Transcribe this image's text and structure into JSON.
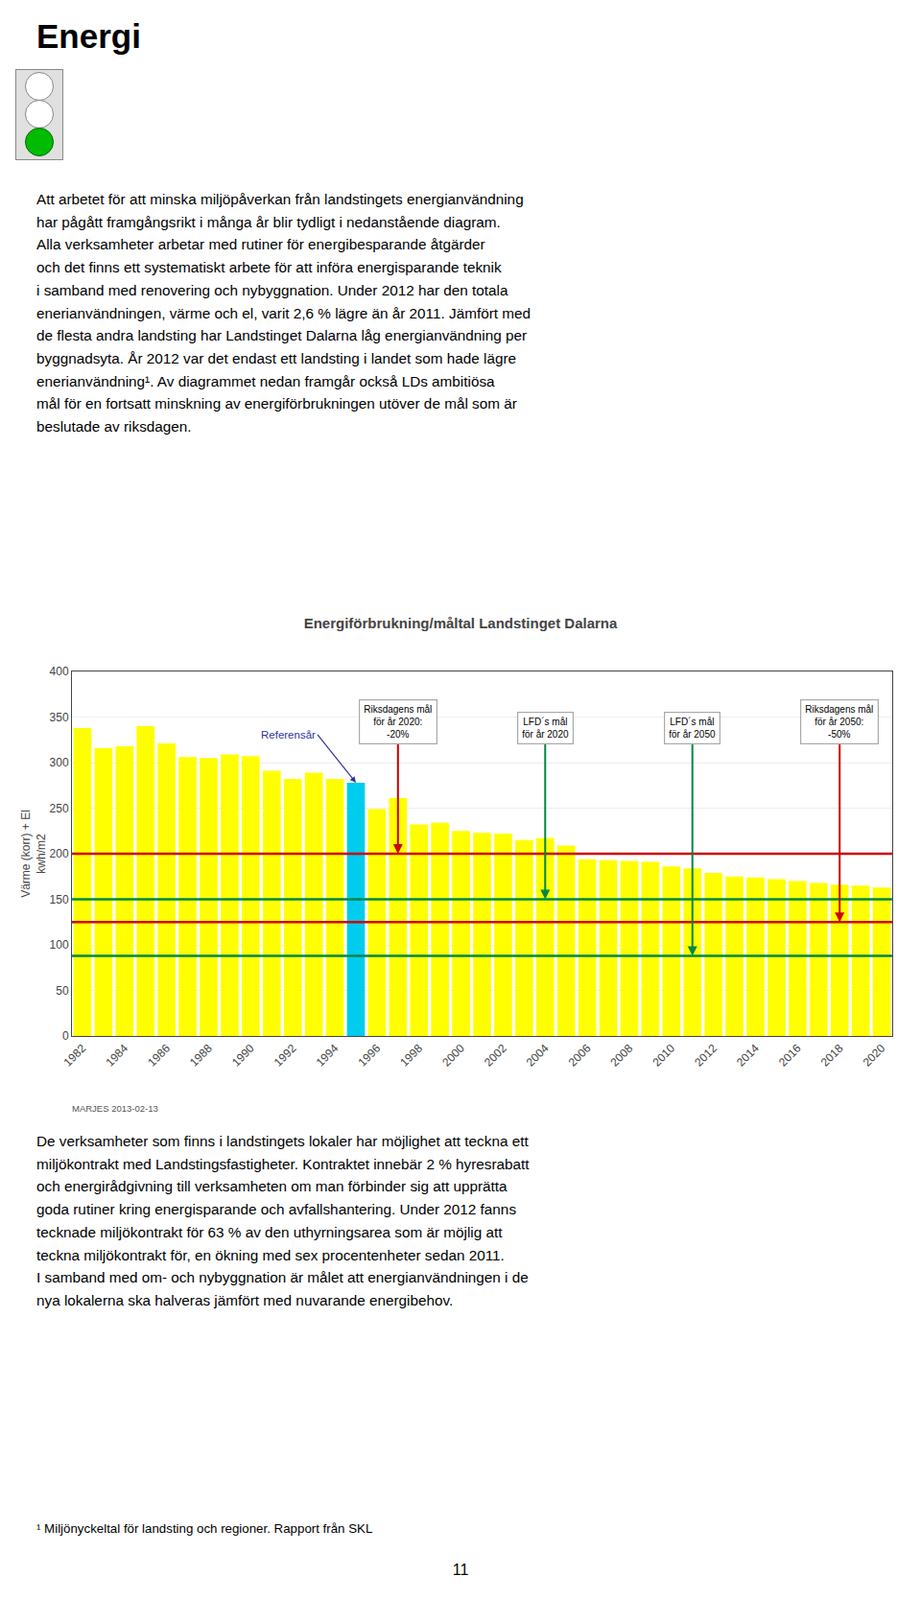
{
  "page_title": "Energi",
  "para1": "Att arbetet för att minska miljöpåverkan från landstingets energianvändning\nhar pågått framgångsrikt i många år blir tydligt i nedanstående diagram.\nAlla verksamheter arbetar med rutiner för energibesparande åtgärder\noch det finns ett systematiskt arbete för att införa energisparande teknik\ni samband med renovering och nybyggnation. Under 2012 har den totala\nenerianvändningen, värme och el, varit 2,6 % lägre än år 2011. Jämfört med\nde flesta andra landsting har Landstinget Dalarna låg energianvändning per\nbyggnadsyta. År 2012 var det endast ett landsting i landet som hade lägre\nenerianvändning¹. Av diagrammet nedan framgår också LDs ambitiösa\nmål för en fortsatt minskning av energiförbrukningen utöver de mål som är\nbeslutade av riksdagen.",
  "para_bottom1": "De verksamheter som finns i landstingets lokaler har möjlighet att teckna ett\nmiljökontrakt med Landstingsfastigheter. Kontraktet innebär 2 % hyresrabatt\noch energirådgivning till verksamheten om man förbinder sig att upprätta\ngoda rutiner kring energisparande och avfallshantering. Under 2012 fanns\ntecknade miljökontrakt för 63 % av den uthyrningsarea som är möjlig att\nteckna miljökontrakt för, en ökning med sex procentenheter sedan 2011.\nI samband med om- och nybyggnation är målet att energianvändningen i de\nnya lokalerna ska halveras jämfört med nuvarande energibehov.",
  "footnote": "¹ Miljönyckeltal för landsting och regioner. Rapport från SKL",
  "page_number": "11",
  "chart_data": {
    "type": "bar",
    "title": "Energiförbrukning/måltal Landstinget Dalarna",
    "ylabel": "Värme (korr) + El\nkwh/m2",
    "source": "MARJES 2013-02-13",
    "x": [
      1982,
      1983,
      1984,
      1985,
      1986,
      1987,
      1988,
      1989,
      1990,
      1991,
      1992,
      1993,
      1994,
      1995,
      1996,
      1997,
      1998,
      1999,
      2000,
      2001,
      2002,
      2003,
      2004,
      2005,
      2006,
      2007,
      2008,
      2009,
      2010,
      2011,
      2012,
      2013,
      2014,
      2015,
      2016,
      2017,
      2018,
      2019,
      2020
    ],
    "values": [
      338,
      316,
      318,
      340,
      321,
      306,
      305,
      309,
      307,
      291,
      282,
      289,
      282,
      278,
      249,
      261,
      232,
      234,
      225,
      223,
      222,
      215,
      217,
      209,
      194,
      193,
      192,
      191,
      186,
      184,
      179,
      175,
      174,
      172,
      170,
      168,
      166,
      165,
      163
    ],
    "colors": [
      "#ffff00",
      "#ffff00",
      "#ffff00",
      "#ffff00",
      "#ffff00",
      "#ffff00",
      "#ffff00",
      "#ffff00",
      "#ffff00",
      "#ffff00",
      "#ffff00",
      "#ffff00",
      "#ffff00",
      "#00ccee",
      "#ffff00",
      "#ffff00",
      "#ffff00",
      "#ffff00",
      "#ffff00",
      "#ffff00",
      "#ffff00",
      "#ffff00",
      "#ffff00",
      "#ffff00",
      "#ffff00",
      "#ffff00",
      "#ffff00",
      "#ffff00",
      "#ffff00",
      "#ffff00",
      "#ffff00",
      "#ffff00",
      "#ffff00",
      "#ffff00",
      "#ffff00",
      "#ffff00",
      "#ffff00",
      "#ffff00",
      "#ffff00"
    ],
    "xlim": [
      1981.5,
      2020.5
    ],
    "xticks": [
      1982,
      1984,
      1986,
      1988,
      1990,
      1992,
      1994,
      1996,
      1998,
      2000,
      2002,
      2004,
      2006,
      2008,
      2010,
      2012,
      2014,
      2016,
      2018,
      2020
    ],
    "ylim": [
      0,
      400
    ],
    "yticks": [
      0,
      50,
      100,
      150,
      200,
      250,
      300,
      350,
      400
    ],
    "grid": true,
    "reference_lines": [
      {
        "value": 200,
        "color": "#cc0000"
      },
      {
        "value": 150,
        "color": "#008844"
      },
      {
        "value": 125,
        "color": "#cc0000"
      },
      {
        "value": 88,
        "color": "#008844"
      }
    ],
    "annotations": [
      {
        "text": "Riksdagens mål\nför år 2020:\n-20%",
        "x": 1997,
        "y": 200,
        "color": "#cc0000"
      },
      {
        "text": "LFD´s mål\nför år 2020",
        "x": 2004,
        "y": 150,
        "color": "#008844"
      },
      {
        "text": "LFD´s mål\nför år 2050",
        "x": 2011,
        "y": 88,
        "color": "#008844"
      },
      {
        "text": "Riksdagens mål\nför år 2050:\n-50%",
        "x": 2018,
        "y": 125,
        "color": "#cc0000"
      }
    ],
    "reference_note": {
      "text": "Referensår",
      "x": 1995,
      "y": 278,
      "color": "#333399"
    }
  }
}
